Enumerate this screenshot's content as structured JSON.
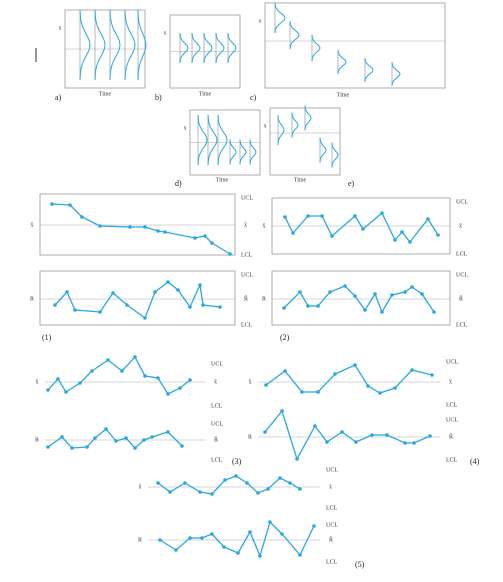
{
  "panels": [
    {
      "label": "a)",
      "time": "Time",
      "axis": "x"
    },
    {
      "label": "b)",
      "time": "Time",
      "axis": "x"
    },
    {
      "label": "c)",
      "time": "Time",
      "axis": "x"
    },
    {
      "label": "d)",
      "time": "Time",
      "axis": "x"
    },
    {
      "label": "e)",
      "time": "Time",
      "axis": "x"
    }
  ],
  "charts": [
    {
      "label": "(1)",
      "top": {
        "axis": "x̄",
        "ucl": "UCL",
        "mid": "x̄",
        "lcl": "LCL"
      },
      "bottom": {
        "axis": "R",
        "ucl": "UCL",
        "mid": "R̄",
        "lcl": "LCL"
      }
    },
    {
      "label": "(2)",
      "top": {
        "axis": "x̄",
        "ucl": "UCL",
        "mid": "x̄",
        "lcl": "LCL"
      },
      "bottom": {
        "axis": "R",
        "ucl": "UCL",
        "mid": "R̄",
        "lcl": "LCL"
      }
    },
    {
      "label": "(3)",
      "top": {
        "axis": "x̄",
        "ucl": "UCL",
        "mid": "x̄",
        "lcl": "LCL"
      },
      "bottom": {
        "axis": "R",
        "ucl": "UCL",
        "mid": "R̄",
        "lcl": "LCL"
      }
    },
    {
      "label": "(4)",
      "top": {
        "axis": "x̄",
        "ucl": "UCL",
        "mid": "x̄",
        "lcl": "LCL"
      },
      "bottom": {
        "axis": "R",
        "ucl": "UCL",
        "mid": "R̄",
        "lcl": "LCL"
      }
    },
    {
      "label": "(5)",
      "top": {
        "axis": "x̄",
        "ucl": "UCL",
        "mid": "x̄",
        "lcl": "LCL"
      },
      "bottom": {
        "axis": "R",
        "ucl": "UCL",
        "mid": "R̄",
        "lcl": "LCL"
      }
    }
  ]
}
